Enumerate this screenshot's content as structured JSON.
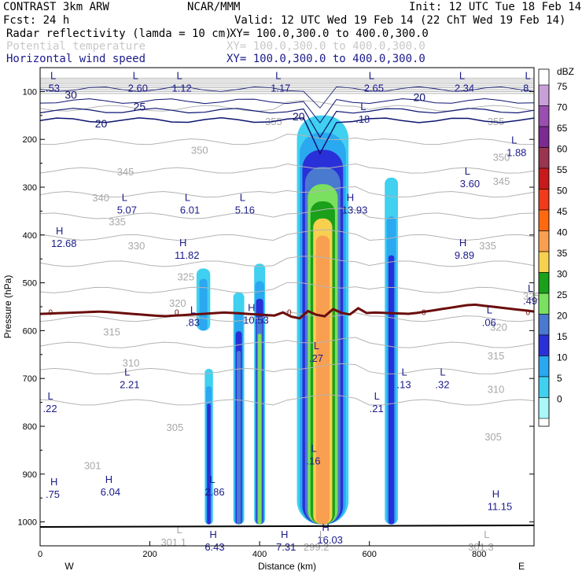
{
  "header": {
    "model": "CONTRAST  3km ARW",
    "org": "NCAR/MMM",
    "init": "Init: 12 UTC Tue 18 Feb 14",
    "fcst": "Fcst:   24 h",
    "valid": "Valid: 12 UTC Wed 19 Feb 14 (22 ChT Wed 19 Feb 14)",
    "field1_name": "Radar reflectivity (lamda = 10 cm)",
    "field1_xy": "XY= 100.0,300.0 to 400.0,300.0",
    "field2_name": "Potential temperature",
    "field2_xy": "XY= 100.0,300.0 to 400.0,300.0",
    "field3_name": "Horizontal wind speed",
    "field3_xy": "XY= 100.0,300.0 to 400.0,300.0"
  },
  "chart_data": {
    "type": "heatmap",
    "title": "Radar reflectivity (lamda = 10 cm) cross section",
    "xlabel": "Distance (km)",
    "ylabel": "Pressure (hPa)",
    "xlim": [
      0,
      900
    ],
    "ylim": [
      1050,
      50
    ],
    "x_ticks": [
      "0",
      "200",
      "400",
      "600",
      "800"
    ],
    "y_ticks": [
      "100",
      "200",
      "300",
      "400",
      "500",
      "600",
      "700",
      "800",
      "900",
      "1000"
    ],
    "x_end_labels": [
      "W",
      "E"
    ],
    "colorbar": {
      "unit": "dBZ",
      "levels": [
        "75",
        "70",
        "65",
        "60",
        "55",
        "50",
        "45",
        "40",
        "35",
        "30",
        "25",
        "20",
        "15",
        "10",
        "5",
        "0"
      ],
      "colors": [
        "#c8a0d8",
        "#9a4fb0",
        "#7a2a90",
        "#9a3550",
        "#c81a1a",
        "#f03a1a",
        "#ff6a10",
        "#f8a050",
        "#f8d050",
        "#1aa01a",
        "#7ae060",
        "#4a7ad0",
        "#2a30d8",
        "#2aa8f0",
        "#40d0f0",
        "#a8f8f8"
      ]
    },
    "reflectivity_cells": [
      {
        "x": [
          468,
          562
        ],
        "p": [
          150,
          1005
        ],
        "peak_dBZ": 40
      },
      {
        "x": [
          390,
          410
        ],
        "p": [
          460,
          1005
        ],
        "peak_dBZ": 25
      },
      {
        "x": [
          352,
          372
        ],
        "p": [
          520,
          1005
        ],
        "peak_dBZ": 20
      },
      {
        "x": [
          628,
          652
        ],
        "p": [
          280,
          1005
        ],
        "peak_dBZ": 15
      },
      {
        "x": [
          300,
          315
        ],
        "p": [
          680,
          1005
        ],
        "peak_dBZ": 15
      },
      {
        "x": [
          285,
          310
        ],
        "p": [
          470,
          600
        ],
        "peak_dBZ": 10
      }
    ],
    "freezing_level": {
      "label": "0",
      "x": [
        0,
        900
      ],
      "p": [
        565,
        560,
        570,
        562,
        570,
        560,
        565,
        545,
        560
      ]
    },
    "wind_speed_contours": {
      "values": [
        "20",
        "25",
        "30",
        "20",
        "20"
      ],
      "label_positions_km": [
        [
          100,
          175
        ],
        [
          170,
          140
        ],
        [
          45,
          115
        ],
        [
          460,
          160
        ],
        [
          680,
          120
        ]
      ]
    },
    "theta_contours": {
      "values": [
        "355",
        "350",
        "345",
        "340",
        "335",
        "330",
        "325",
        "320",
        "315",
        "310",
        "305",
        "301"
      ],
      "left_labels": [
        "355",
        "350",
        "345",
        "340",
        "335",
        "330",
        "325",
        "320",
        "315",
        "310",
        "305",
        "301"
      ],
      "right_labels": [
        "355",
        "350",
        "345",
        "335",
        "325",
        "320",
        "315",
        "310",
        "305"
      ]
    },
    "extrema_labels": [
      {
        "type": "L",
        "value": ".53",
        "x_km": 10,
        "p": 100
      },
      {
        "type": "L",
        "value": "2.60",
        "x_km": 160,
        "p": 100
      },
      {
        "type": "L",
        "value": "1.12",
        "x_km": 240,
        "p": 100
      },
      {
        "type": "L",
        "value": "1.17",
        "x_km": 420,
        "p": 100
      },
      {
        "type": "L",
        "value": "2.65",
        "x_km": 590,
        "p": 100
      },
      {
        "type": "L",
        "value": "2.34",
        "x_km": 755,
        "p": 100
      },
      {
        "type": "L",
        "value": ".8",
        "x_km": 875,
        "p": 100
      },
      {
        "type": "L",
        "value": ".18",
        "x_km": 575,
        "p": 165
      },
      {
        "type": "L",
        "value": "1.88",
        "x_km": 850,
        "p": 235
      },
      {
        "type": "L",
        "value": "3.60",
        "x_km": 765,
        "p": 300
      },
      {
        "type": "L",
        "value": "5.07",
        "x_km": 140,
        "p": 355
      },
      {
        "type": "L",
        "value": "6.01",
        "x_km": 255,
        "p": 355
      },
      {
        "type": "L",
        "value": "5.16",
        "x_km": 355,
        "p": 355
      },
      {
        "type": "H",
        "value": "13.93",
        "x_km": 550,
        "p": 355
      },
      {
        "type": "H",
        "value": "12.68",
        "x_km": 20,
        "p": 425
      },
      {
        "type": "H",
        "value": "11.82",
        "x_km": 245,
        "p": 450
      },
      {
        "type": "H",
        "value": "9.89",
        "x_km": 755,
        "p": 450
      },
      {
        "type": "L",
        "value": ".49",
        "x_km": 880,
        "p": 545
      },
      {
        "type": "L",
        "value": ".83",
        "x_km": 265,
        "p": 590
      },
      {
        "type": "H",
        "value": "10.53",
        "x_km": 370,
        "p": 585
      },
      {
        "type": "L",
        "value": ".06",
        "x_km": 805,
        "p": 590
      },
      {
        "type": "L",
        "value": ".27",
        "x_km": 490,
        "p": 665
      },
      {
        "type": "L",
        "value": ".13",
        "x_km": 650,
        "p": 720
      },
      {
        "type": "L",
        "value": ".32",
        "x_km": 720,
        "p": 720
      },
      {
        "type": "L",
        "value": "2.21",
        "x_km": 145,
        "p": 720
      },
      {
        "type": "L",
        "value": ".21",
        "x_km": 600,
        "p": 770
      },
      {
        "type": "L",
        "value": ".22",
        "x_km": 5,
        "p": 770
      },
      {
        "type": "L",
        "value": ".16",
        "x_km": 485,
        "p": 880
      },
      {
        "type": "H",
        "value": ".75",
        "x_km": 10,
        "p": 950
      },
      {
        "type": "H",
        "value": "6.04",
        "x_km": 110,
        "p": 945
      },
      {
        "type": "L",
        "value": "2.86",
        "x_km": 300,
        "p": 945
      },
      {
        "type": "H",
        "value": "11.15",
        "x_km": 815,
        "p": 975
      },
      {
        "type": "H",
        "value": "6.43",
        "x_km": 300,
        "p": 1060
      },
      {
        "type": "H",
        "value": "7.31",
        "x_km": 430,
        "p": 1060
      },
      {
        "type": "H",
        "value": "16.03",
        "x_km": 505,
        "p": 1045
      }
    ],
    "theta_surface_labels": [
      "301.1",
      "299.2",
      "301.3"
    ],
    "theta_surface_extra": [
      "L",
      "L",
      "L"
    ]
  }
}
